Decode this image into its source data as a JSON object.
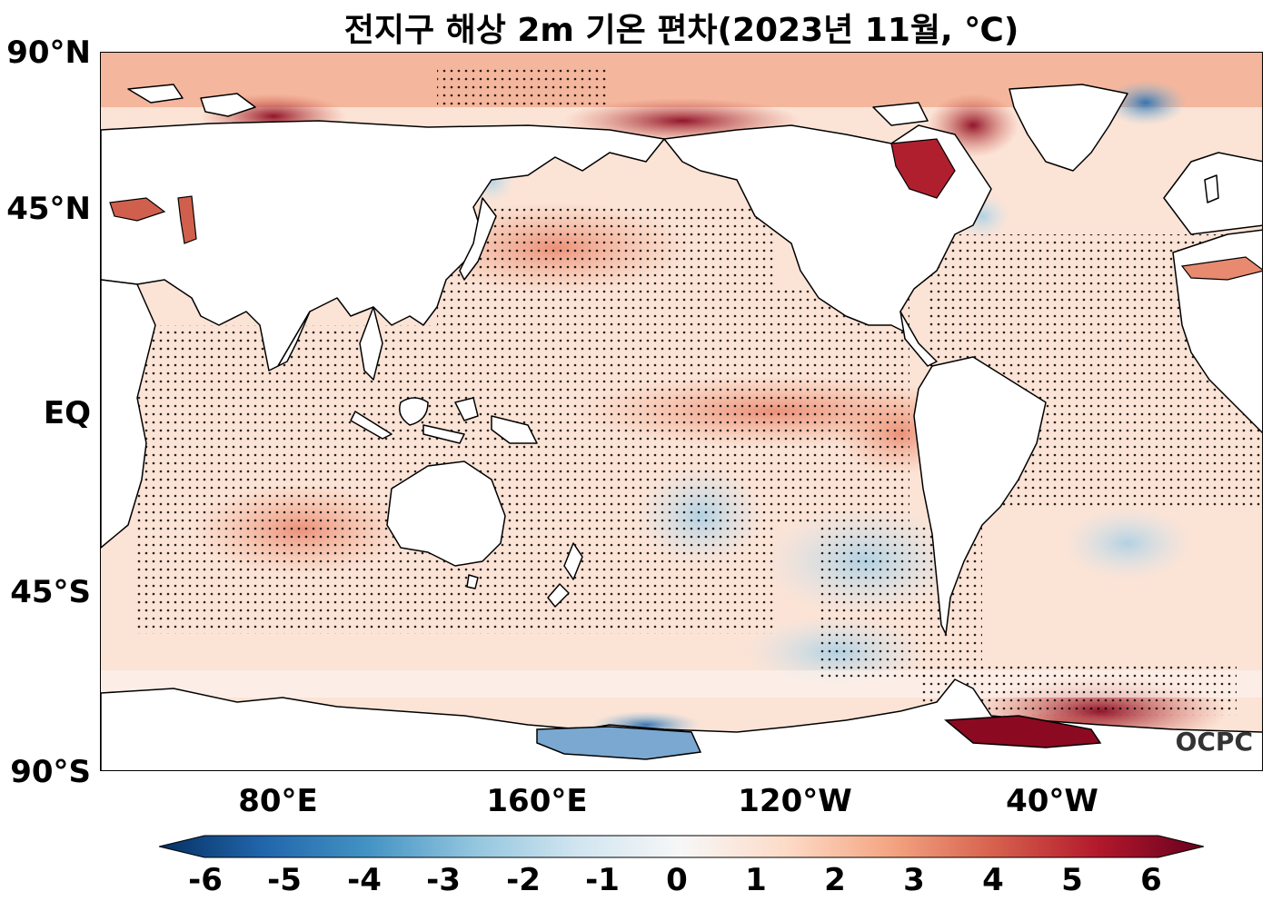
{
  "title": "전지구 해상 2m 기온 편차(2023년 11월, ℃)",
  "lat_labels": [
    "90°N",
    "45°N",
    "EQ",
    "45°S",
    "90°S"
  ],
  "lon_labels": [
    "80°E",
    "160°E",
    "120°W",
    "40°W"
  ],
  "colorbar": {
    "ticks": [
      "-6",
      "-5",
      "-4",
      "-3",
      "-2",
      "-1",
      "0",
      "1",
      "2",
      "3",
      "4",
      "5",
      "6"
    ],
    "colors": [
      "#053061",
      "#2166ac",
      "#4393c3",
      "#92c5de",
      "#d1e5f0",
      "#f7f7f7",
      "#fddbc7",
      "#f4a582",
      "#d6604d",
      "#b2182b",
      "#67001f"
    ]
  },
  "logo": "OCPC"
}
